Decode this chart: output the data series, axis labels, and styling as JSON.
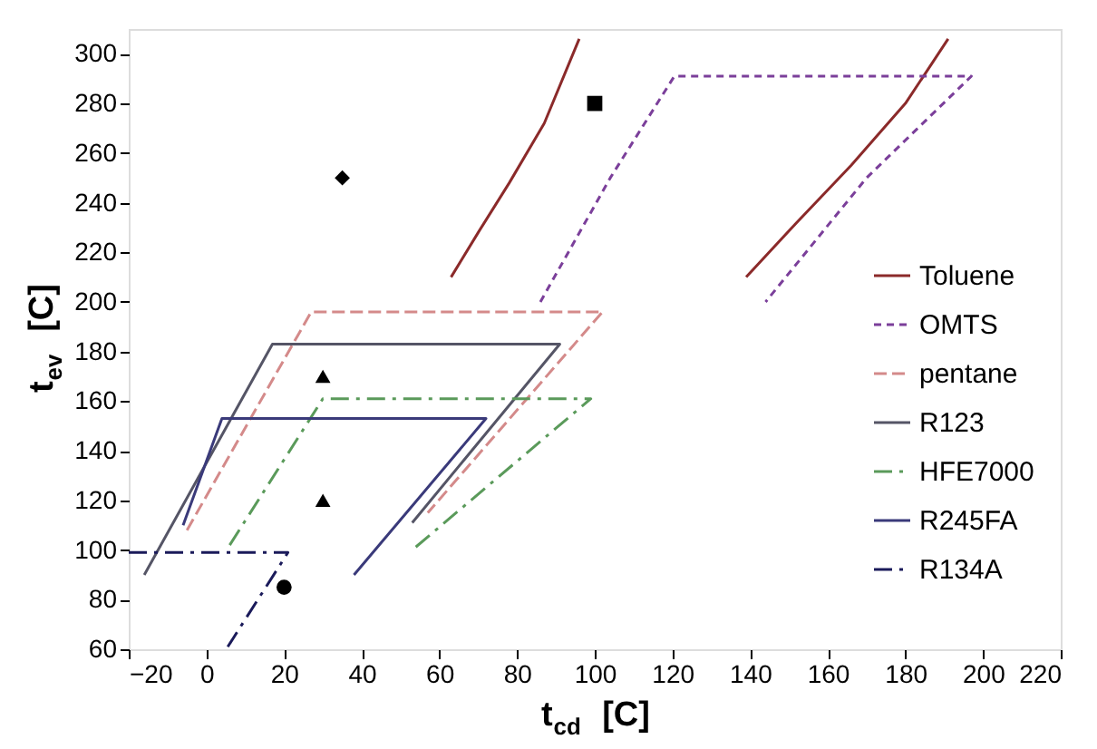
{
  "chart_data": {
    "type": "line",
    "xlabel": "t$_{cd}$  [C]",
    "ylabel": "t$_{ev}$  [C]",
    "xlim": [
      -20,
      220
    ],
    "xticks": [
      -20,
      0,
      20,
      40,
      60,
      80,
      100,
      120,
      140,
      160,
      180,
      200,
      220
    ],
    "ylim": [
      60,
      310
    ],
    "yticks": [
      60,
      80,
      100,
      120,
      140,
      160,
      180,
      200,
      220,
      240,
      260,
      280,
      300
    ],
    "grid": false,
    "legend": "right",
    "series": [
      {
        "name": "Toluene",
        "color": "#8b2a2a",
        "line_style": "solid",
        "x": [
          63,
          70,
          78,
          87,
          96,
          null,
          139,
          152,
          166,
          180,
          191
        ],
        "values": [
          210,
          228,
          248,
          272,
          306,
          null,
          210,
          232,
          255,
          280,
          306
        ]
      },
      {
        "name": "OMTS",
        "color": "#7b3f9a",
        "line_style": "dashed",
        "x": [
          86,
          104,
          120.5,
          197,
          170,
          144
        ],
        "values": [
          200,
          250,
          291,
          291,
          250,
          200
        ]
      },
      {
        "name": "pentane",
        "color": "#d48a8a",
        "line_style": "longdash",
        "x": [
          -5,
          27,
          102,
          57
        ],
        "values": [
          108,
          196,
          196,
          115
        ]
      },
      {
        "name": "R123",
        "color": "#555566",
        "line_style": "solid",
        "x": [
          -16,
          17,
          91,
          53
        ],
        "values": [
          90,
          183,
          183,
          111
        ]
      },
      {
        "name": "HFE7000",
        "color": "#5a9a5a",
        "line_style": "dashdot",
        "x": [
          6,
          30,
          99,
          53
        ],
        "values": [
          102,
          161,
          161,
          100
        ]
      },
      {
        "name": "R245FA",
        "color": "#3a3a7a",
        "line_style": "solid",
        "x": [
          -6,
          4,
          72,
          38
        ],
        "values": [
          110,
          153,
          153,
          90
        ]
      },
      {
        "name": "R134A",
        "color": "#1a1a5a",
        "line_style": "dashdot",
        "x": [
          -20,
          21,
          5.5
        ],
        "values": [
          99,
          99,
          61
        ]
      },
      {
        "type": "scatter",
        "marker": "diamond",
        "color": "#000000",
        "x": [
          35
        ],
        "values": [
          250
        ]
      },
      {
        "type": "scatter",
        "marker": "square",
        "color": "#000000",
        "x": [
          100
        ],
        "values": [
          280
        ]
      },
      {
        "type": "scatter",
        "marker": "triangle",
        "color": "#000000",
        "x": [
          30
        ],
        "values": [
          170
        ]
      },
      {
        "type": "scatter",
        "marker": "triangle",
        "color": "#000000",
        "x": [
          30
        ],
        "values": [
          120
        ]
      },
      {
        "type": "scatter",
        "marker": "circle",
        "color": "#000000",
        "x": [
          20
        ],
        "values": [
          85
        ]
      }
    ]
  }
}
